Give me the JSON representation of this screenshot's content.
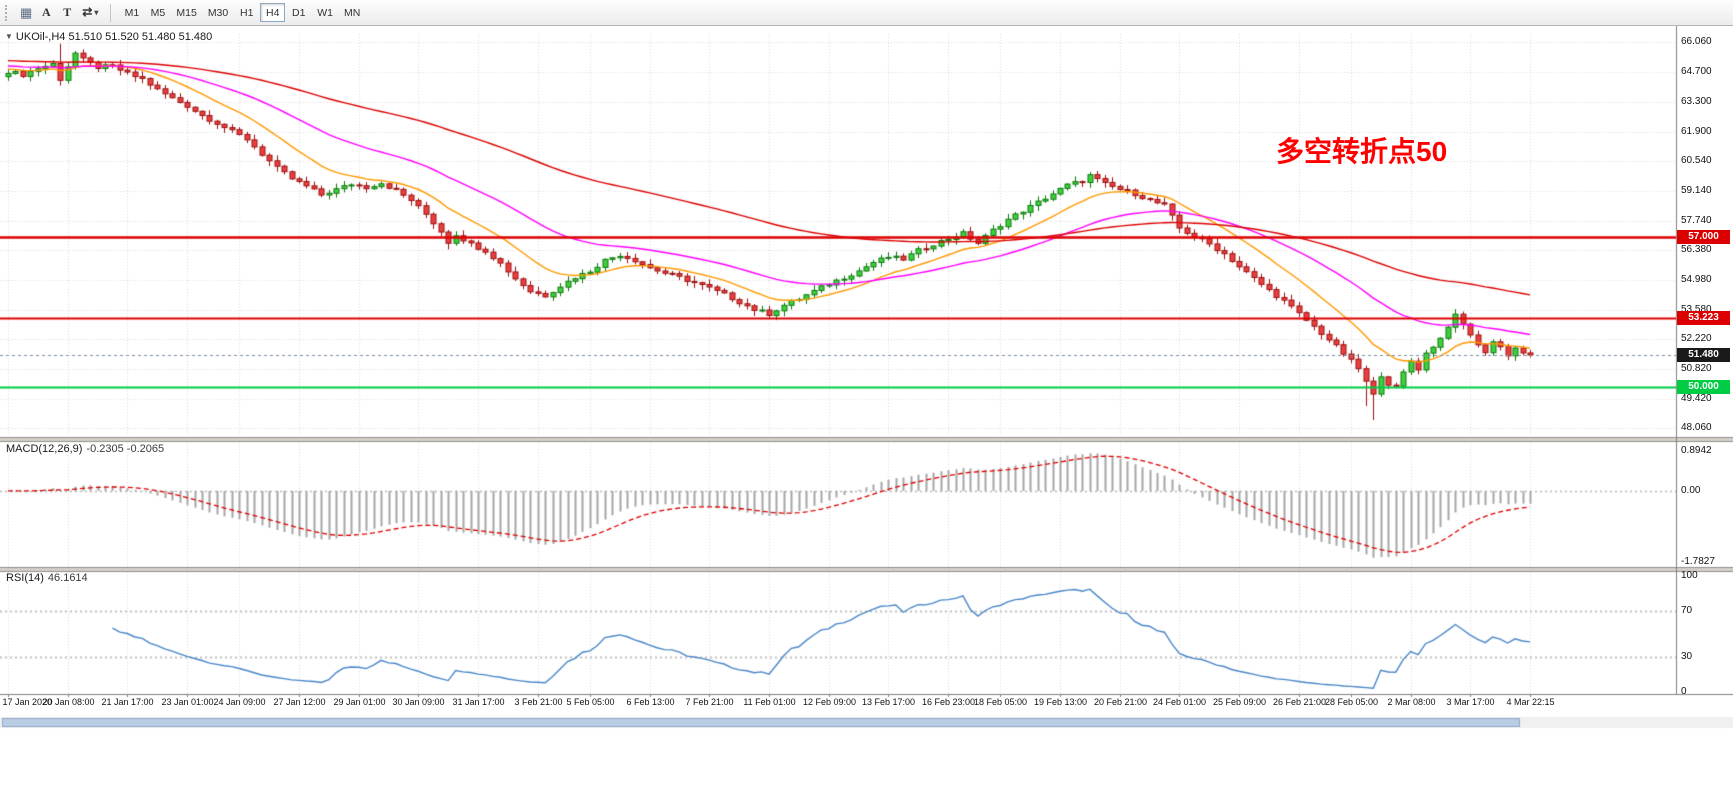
{
  "toolbar": {
    "icons": {
      "grid": "▦",
      "cycle": "⇄",
      "caret": "▾"
    },
    "tools": {
      "arrow_label": "A",
      "text_label": "T"
    },
    "timeframes": [
      "M1",
      "M5",
      "M15",
      "M30",
      "H1",
      "H4",
      "D1",
      "W1",
      "MN"
    ],
    "active_timeframe": "H4"
  },
  "chart": {
    "collapse_icon": "▼",
    "header": "UKOil-,H4 51.510 51.520 51.480 51.480",
    "annotation": {
      "text": "多空转折点50",
      "color": "#FF0000"
    }
  },
  "indicators": {
    "macd": {
      "label": "MACD(12,26,9)",
      "values": "-0.2305 -0.2065",
      "scale": {
        "top": "0.8942",
        "zero": "0.00",
        "bottom": "-1.7827"
      }
    },
    "rsi": {
      "label": "RSI(14)",
      "value": "46.1614",
      "scale": {
        "top": "100",
        "upper": "70",
        "lower": "30",
        "bottom": "0"
      }
    }
  },
  "chart_data": {
    "type": "candlestick",
    "symbol": "UKOil-",
    "timeframe": "H4",
    "ohlc_header": {
      "open": "51.510",
      "high": "51.520",
      "low": "51.480",
      "close": "51.480"
    },
    "last_price": 51.48,
    "bars": 205,
    "price_axis": {
      "min": 47.75,
      "max": 66.45,
      "ticks": [
        {
          "v": 66.06,
          "label": "66.060"
        },
        {
          "v": 64.7,
          "label": "64.700"
        },
        {
          "v": 63.3,
          "label": "63.300"
        },
        {
          "v": 61.9,
          "label": "61.900"
        },
        {
          "v": 60.54,
          "label": "60.540"
        },
        {
          "v": 59.14,
          "label": "59.140"
        },
        {
          "v": 57.74,
          "label": "57.740"
        },
        {
          "v": 56.38,
          "label": "56.380"
        },
        {
          "v": 54.98,
          "label": "54.980"
        },
        {
          "v": 53.58,
          "label": "53.580"
        },
        {
          "v": 52.22,
          "label": "52.220"
        },
        {
          "v": 50.82,
          "label": "50.820"
        },
        {
          "v": 49.42,
          "label": "49.420"
        },
        {
          "v": 48.06,
          "label": "48.060"
        }
      ]
    },
    "close_path_anchors": [
      [
        0,
        64.7
      ],
      [
        2,
        64.55
      ],
      [
        4,
        64.85
      ],
      [
        6,
        65.05
      ],
      [
        7,
        64.35
      ],
      [
        8,
        64.95
      ],
      [
        9,
        65.55
      ],
      [
        10,
        65.25
      ],
      [
        12,
        64.9
      ],
      [
        14,
        64.95
      ],
      [
        16,
        64.6
      ],
      [
        18,
        64.35
      ],
      [
        20,
        63.85
      ],
      [
        22,
        63.45
      ],
      [
        24,
        63.1
      ],
      [
        26,
        62.65
      ],
      [
        28,
        62.3
      ],
      [
        30,
        61.9
      ],
      [
        32,
        61.55
      ],
      [
        34,
        60.85
      ],
      [
        36,
        60.2
      ],
      [
        38,
        59.7
      ],
      [
        40,
        59.35
      ],
      [
        42,
        58.95
      ],
      [
        44,
        59.2
      ],
      [
        46,
        59.45
      ],
      [
        48,
        59.3
      ],
      [
        50,
        59.5
      ],
      [
        52,
        59.15
      ],
      [
        54,
        58.7
      ],
      [
        56,
        58.05
      ],
      [
        58,
        57.25
      ],
      [
        59,
        56.75
      ],
      [
        60,
        57.1
      ],
      [
        62,
        56.65
      ],
      [
        64,
        56.35
      ],
      [
        66,
        55.75
      ],
      [
        68,
        55.05
      ],
      [
        70,
        54.45
      ],
      [
        72,
        54.25
      ],
      [
        74,
        54.7
      ],
      [
        76,
        55.1
      ],
      [
        78,
        55.4
      ],
      [
        80,
        55.9
      ],
      [
        82,
        56.15
      ],
      [
        84,
        55.9
      ],
      [
        86,
        55.55
      ],
      [
        88,
        55.3
      ],
      [
        90,
        55.1
      ],
      [
        92,
        54.85
      ],
      [
        94,
        54.6
      ],
      [
        96,
        54.3
      ],
      [
        98,
        53.95
      ],
      [
        100,
        53.6
      ],
      [
        102,
        53.4
      ],
      [
        104,
        53.8
      ],
      [
        106,
        54.1
      ],
      [
        108,
        54.45
      ],
      [
        110,
        54.8
      ],
      [
        112,
        55.1
      ],
      [
        114,
        55.4
      ],
      [
        116,
        55.8
      ],
      [
        118,
        56.05
      ],
      [
        120,
        55.95
      ],
      [
        122,
        56.35
      ],
      [
        124,
        56.65
      ],
      [
        126,
        56.9
      ],
      [
        128,
        57.15
      ],
      [
        130,
        56.7
      ],
      [
        132,
        57.3
      ],
      [
        134,
        57.8
      ],
      [
        136,
        58.2
      ],
      [
        138,
        58.6
      ],
      [
        140,
        59.0
      ],
      [
        142,
        59.4
      ],
      [
        144,
        59.6
      ],
      [
        145,
        59.85
      ],
      [
        147,
        59.45
      ],
      [
        149,
        59.2
      ],
      [
        151,
        59.0
      ],
      [
        153,
        58.7
      ],
      [
        155,
        58.45
      ],
      [
        157,
        57.4
      ],
      [
        159,
        57.0
      ],
      [
        161,
        56.65
      ],
      [
        163,
        56.2
      ],
      [
        165,
        55.6
      ],
      [
        167,
        55.05
      ],
      [
        169,
        54.5
      ],
      [
        171,
        54.0
      ],
      [
        173,
        53.4
      ],
      [
        175,
        52.8
      ],
      [
        177,
        52.2
      ],
      [
        179,
        51.55
      ],
      [
        181,
        50.85
      ],
      [
        183,
        49.6
      ],
      [
        184,
        50.55
      ],
      [
        185,
        50.15
      ],
      [
        186,
        49.95
      ],
      [
        187,
        50.65
      ],
      [
        188,
        51.2
      ],
      [
        189,
        50.85
      ],
      [
        190,
        51.55
      ],
      [
        191,
        51.9
      ],
      [
        192,
        52.25
      ],
      [
        193,
        52.85
      ],
      [
        194,
        53.3
      ],
      [
        195,
        52.9
      ],
      [
        196,
        52.45
      ],
      [
        197,
        51.9
      ],
      [
        198,
        51.65
      ],
      [
        199,
        52.1
      ],
      [
        200,
        51.85
      ],
      [
        201,
        51.5
      ],
      [
        202,
        51.8
      ],
      [
        203,
        51.6
      ],
      [
        204,
        51.48
      ]
    ],
    "spikes": [
      {
        "i": 7,
        "high": 66.0
      },
      {
        "i": 59,
        "low": 56.4
      },
      {
        "i": 100,
        "low": 53.3
      },
      {
        "i": 145,
        "high": 59.95
      },
      {
        "i": 182,
        "low": 49.1
      },
      {
        "i": 183,
        "low": 48.45
      },
      {
        "i": 194,
        "high": 53.62
      }
    ],
    "moving_averages": [
      {
        "period": 13,
        "color": "#FF9900",
        "seed_offset": 0.2
      },
      {
        "period": 34,
        "color": "#FF00FF",
        "seed_offset": 0.35
      },
      {
        "period": 89,
        "color": "#DC0000",
        "seed_offset": 0.6
      }
    ],
    "hlines": [
      {
        "value": 57.0,
        "label": "57.000",
        "color": "#DD0000",
        "lw": 2.5,
        "draggable": true
      },
      {
        "value": 53.223,
        "label": "53.223",
        "color": "#DD0000",
        "lw": 2,
        "draggable": true
      },
      {
        "value": 50.0,
        "label": "50.000",
        "color": "#00CC44",
        "lw": 2,
        "draggable": true
      },
      {
        "value": 51.48,
        "label": "51.480",
        "color": "#1a1a1a",
        "lw": 1,
        "dash": [
          3,
          3
        ],
        "line_color": "#7d8fa3",
        "draggable": false
      }
    ],
    "candle_colors": {
      "up_fill": "#3fd03f",
      "up_border": "#0c7a0c",
      "down_fill": "#e84040",
      "down_border": "#9e1010"
    },
    "macd": {
      "fast": 12,
      "slow": 26,
      "signal": 9,
      "hist_color": "#a6a6a6",
      "signal_color": "#dd0000"
    },
    "rsi": {
      "period": 14,
      "color": "#4a86c8",
      "levels": [
        70,
        30
      ]
    },
    "date_labels": [
      "17 Jan 2020",
      "20 Jan 08:00",
      "21 Jan 17:00",
      "23 Jan 01:00",
      "24 Jan 09:00",
      "27 Jan 12:00",
      "29 Jan 01:00",
      "30 Jan 09:00",
      "31 Jan 17:00",
      "3 Feb 21:00",
      "5 Feb 05:00",
      "6 Feb 13:00",
      "7 Feb 21:00",
      "11 Feb 01:00",
      "12 Feb 09:00",
      "13 Feb 17:00",
      "16 Feb 23:00",
      "18 Feb 05:00",
      "19 Feb 13:00",
      "20 Feb 21:00",
      "24 Feb 01:00",
      "25 Feb 09:00",
      "26 Feb 21:00",
      "28 Feb 05:00",
      "2 Mar 08:00",
      "3 Mar 17:00",
      "4 Mar 22:15"
    ]
  }
}
